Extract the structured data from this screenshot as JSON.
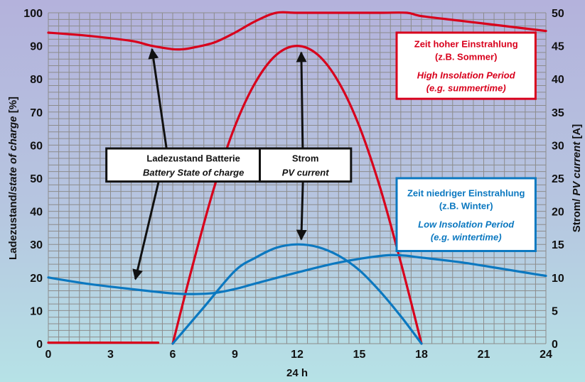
{
  "chart_data": {
    "type": "line",
    "x": [
      0,
      3,
      6,
      9,
      12,
      15,
      18,
      21,
      24
    ],
    "xlabel": "24 h",
    "xlim": [
      0,
      24
    ],
    "ylabel_left": [
      "Ladezustand/",
      "state of charge",
      " [%]"
    ],
    "ylim_left": [
      0,
      100
    ],
    "yticks_left": [
      0,
      10,
      20,
      30,
      40,
      50,
      60,
      70,
      80,
      90,
      100
    ],
    "ylabel_right": [
      "Strom/ ",
      "PV current",
      " [A]"
    ],
    "ylim_right": [
      0,
      50
    ],
    "yticks_right": [
      0,
      5,
      10,
      15,
      20,
      25,
      30,
      35,
      40,
      45,
      50
    ],
    "grid": true,
    "series": [
      {
        "color": "#d8001c",
        "axis": "left",
        "x": [
          0,
          2,
          4,
          5,
          6,
          6.5,
          7,
          8,
          9,
          10,
          11,
          12,
          14,
          16,
          17.3,
          18,
          20,
          22,
          24
        ],
        "y": [
          94,
          93,
          91.5,
          90,
          89,
          89,
          89.5,
          91,
          94,
          97.5,
          100,
          100,
          100,
          100,
          100,
          99,
          97.5,
          96,
          94.5
        ]
      },
      {
        "color": "#d8001c",
        "axis": "left",
        "x": [
          0,
          5.3
        ],
        "y": [
          0.3,
          0.3
        ]
      },
      {
        "color": "#d8001c",
        "axis": "left",
        "x": [
          6,
          7,
          8,
          9,
          10,
          11,
          12,
          13,
          14,
          15,
          16,
          17,
          18
        ],
        "y": [
          0,
          24.6,
          47.2,
          65.7,
          79.1,
          87.3,
          90,
          87.3,
          79.1,
          65.7,
          47.2,
          24.6,
          0
        ]
      },
      {
        "color": "#0b78c0",
        "axis": "left",
        "x": [
          0,
          2,
          4,
          6,
          7,
          8,
          9,
          10,
          12,
          14,
          16,
          17,
          18,
          20,
          22,
          24
        ],
        "y": [
          20,
          18,
          16.5,
          15.2,
          15,
          15.3,
          16.5,
          18.2,
          21.5,
          24.5,
          26.5,
          26.7,
          26,
          24.5,
          22.5,
          20.5
        ]
      },
      {
        "color": "#0b78c0",
        "axis": "left",
        "x": [
          6,
          7.5,
          9,
          10,
          11,
          12,
          13,
          14,
          15,
          16,
          17,
          18
        ],
        "y": [
          0,
          11,
          22,
          26,
          29,
          30,
          29.2,
          26.6,
          22.2,
          15.8,
          8.3,
          0
        ]
      }
    ],
    "annotations": [
      {
        "name": "box-battery-soc",
        "lines": [
          "Ladezustand Batterie",
          "Battery State of charge"
        ],
        "color": "#111111",
        "arrows": [
          [
            5,
            89
          ],
          [
            4.2,
            19.5
          ]
        ]
      },
      {
        "name": "box-pv-current",
        "lines": [
          "Strom",
          "PV current"
        ],
        "color": "#111111",
        "arrows": [
          [
            12.2,
            88
          ],
          [
            12.2,
            31.5
          ]
        ]
      },
      {
        "name": "box-high-insolation",
        "lines": [
          "Zeit hoher Einstrahlung",
          "(z.B. Sommer)",
          "High Insolation Period",
          "(e.g. summertime)"
        ],
        "color": "#d8001c",
        "arrows": []
      },
      {
        "name": "box-low-insolation",
        "lines": [
          "Zeit niedriger Einstrahlung",
          "(z.B. Winter)",
          "Low Insolation Period",
          "(e.g. wintertime)"
        ],
        "color": "#0b78c0",
        "arrows": []
      }
    ]
  }
}
